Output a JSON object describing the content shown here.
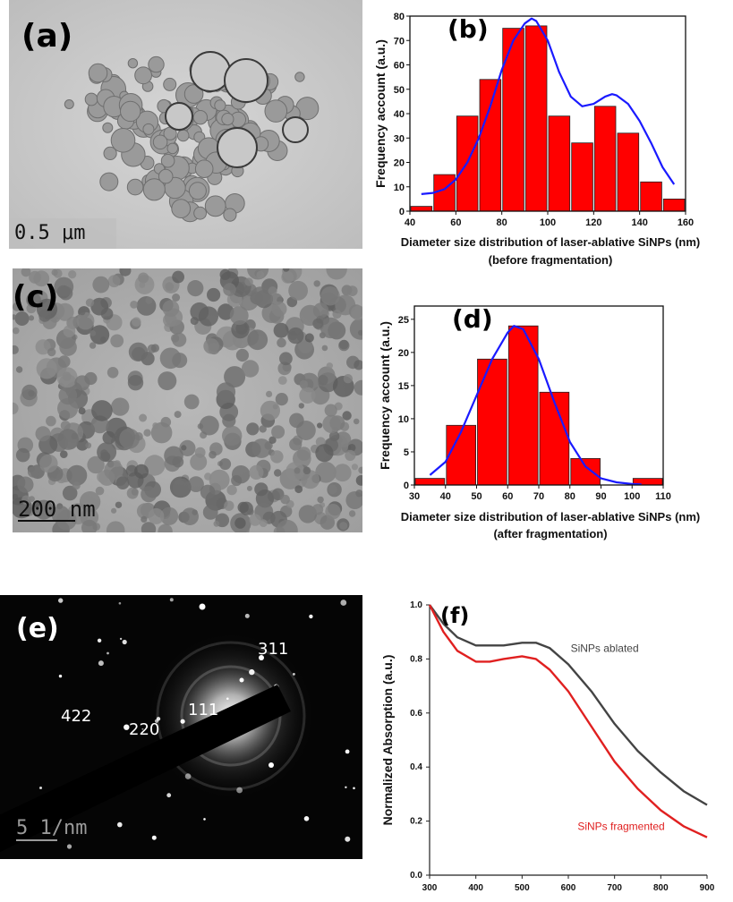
{
  "panels": {
    "a": {
      "label": "(a)",
      "scale_text": "0.5 μm"
    },
    "c": {
      "label": "(c)",
      "scale_text": "200 nm"
    },
    "e": {
      "label": "(e)",
      "scale_text": "5 1/nm",
      "rings": [
        "311",
        "422",
        "220",
        "111"
      ]
    }
  },
  "chart_data": [
    {
      "id": "b",
      "type": "bar",
      "panel_label": "(b)",
      "xlabel": "Diameter size distribution of laser-ablative SiNPs (nm)",
      "xlabel2": "(before fragmentation)",
      "ylabel": "Frequency account (a.u.)",
      "xlim": [
        40,
        160
      ],
      "ylim": [
        0,
        80
      ],
      "xticks": [
        40,
        60,
        80,
        100,
        120,
        140,
        160
      ],
      "yticks": [
        0,
        10,
        20,
        30,
        40,
        50,
        60,
        70,
        80
      ],
      "bin_width": 10,
      "bins": [
        {
          "center": 45,
          "value": 2
        },
        {
          "center": 55,
          "value": 15
        },
        {
          "center": 65,
          "value": 39
        },
        {
          "center": 75,
          "value": 54
        },
        {
          "center": 85,
          "value": 75
        },
        {
          "center": 95,
          "value": 76
        },
        {
          "center": 105,
          "value": 39
        },
        {
          "center": 115,
          "value": 28
        },
        {
          "center": 125,
          "value": 43
        },
        {
          "center": 135,
          "value": 32
        },
        {
          "center": 145,
          "value": 12
        },
        {
          "center": 155,
          "value": 5
        }
      ],
      "fit": {
        "x": [
          45,
          50,
          55,
          60,
          65,
          70,
          75,
          80,
          85,
          90,
          93,
          95,
          100,
          105,
          110,
          115,
          120,
          125,
          128,
          130,
          135,
          140,
          145,
          150,
          155
        ],
        "y": [
          7,
          7.5,
          9,
          13,
          20,
          30,
          43,
          58,
          70,
          77,
          79,
          78,
          70,
          57,
          47,
          43,
          44,
          47,
          48,
          47.5,
          44,
          37,
          28,
          18,
          11
        ]
      },
      "bar_color": "#ff0000",
      "fit_color": "#1a1aff"
    },
    {
      "id": "d",
      "type": "bar",
      "panel_label": "(d)",
      "xlabel": "Diameter size distribution  of laser-ablative  SiNPs (nm)",
      "xlabel2": "(after fragmentation)",
      "ylabel": "Frequency account (a.u.)",
      "xlim": [
        30,
        110
      ],
      "ylim": [
        0,
        27
      ],
      "xticks": [
        30,
        40,
        50,
        60,
        70,
        80,
        90,
        100,
        110
      ],
      "yticks": [
        0,
        5,
        10,
        15,
        20,
        25
      ],
      "bin_width": 10,
      "bins": [
        {
          "center": 35,
          "value": 1
        },
        {
          "center": 45,
          "value": 9
        },
        {
          "center": 55,
          "value": 19
        },
        {
          "center": 65,
          "value": 24
        },
        {
          "center": 75,
          "value": 14
        },
        {
          "center": 85,
          "value": 4
        },
        {
          "center": 105,
          "value": 1
        }
      ],
      "fit": {
        "x": [
          35,
          40,
          45,
          50,
          55,
          60,
          62,
          65,
          70,
          75,
          80,
          85,
          90,
          95,
          100,
          103
        ],
        "y": [
          1.5,
          3.5,
          8,
          13.5,
          19,
          23,
          24,
          23.5,
          19,
          12.5,
          6.5,
          2.8,
          1,
          0.4,
          0.15,
          0.1
        ]
      },
      "bar_color": "#ff0000",
      "fit_color": "#1a1aff"
    },
    {
      "id": "f",
      "type": "line",
      "panel_label": "(f)",
      "xlabel": "Wavelength (nm)",
      "ylabel": "Normalized Absorption (a.u.)",
      "xlim": [
        300,
        900
      ],
      "ylim": [
        0,
        1.0
      ],
      "xticks": [
        300,
        400,
        500,
        600,
        700,
        800,
        900
      ],
      "yticks": [
        0.0,
        0.2,
        0.4,
        0.6,
        0.8,
        1.0
      ],
      "series": [
        {
          "name": "SiNPs ablated",
          "color": "#444444",
          "x": [
            300,
            330,
            360,
            400,
            430,
            460,
            500,
            530,
            560,
            600,
            650,
            700,
            750,
            800,
            850,
            900
          ],
          "y": [
            1.0,
            0.93,
            0.88,
            0.85,
            0.85,
            0.85,
            0.86,
            0.86,
            0.84,
            0.78,
            0.68,
            0.56,
            0.46,
            0.38,
            0.31,
            0.26
          ]
        },
        {
          "name": "SiNPs fragmented",
          "color": "#e02020",
          "x": [
            300,
            330,
            360,
            400,
            430,
            460,
            500,
            530,
            560,
            600,
            650,
            700,
            750,
            800,
            850,
            900
          ],
          "y": [
            1.0,
            0.9,
            0.83,
            0.79,
            0.79,
            0.8,
            0.81,
            0.8,
            0.76,
            0.68,
            0.55,
            0.42,
            0.32,
            0.24,
            0.18,
            0.14
          ]
        }
      ]
    }
  ]
}
